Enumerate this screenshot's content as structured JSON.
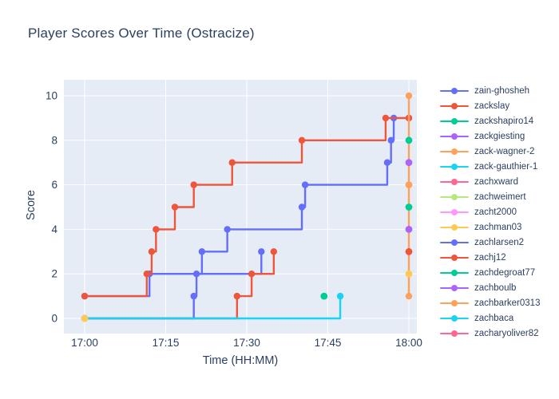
{
  "title": "Player Scores Over Time (Ostracize)",
  "chart_data": {
    "type": "line",
    "step_shape": "hv",
    "title": "Player Scores Over Time (Ostracize)",
    "xlabel": "Time (HH:MM)",
    "ylabel": "Score",
    "x_axis": {
      "tick_labels": [
        "17:00",
        "17:15",
        "17:30",
        "17:45",
        "18:00"
      ],
      "tick_minutes": [
        0,
        15,
        30,
        45,
        60
      ],
      "range_minutes": [
        0,
        60
      ]
    },
    "y_axis": {
      "tick_labels": [
        "0",
        "2",
        "4",
        "6",
        "8",
        "10"
      ],
      "ticks": [
        0,
        2,
        4,
        6,
        8,
        10
      ],
      "range": [
        0,
        10
      ]
    },
    "grid": "on",
    "plot_bg": "#e5ecf6",
    "grid_color": "#ffffff",
    "legend_position": "right",
    "series": [
      {
        "name": "zain-ghosheh",
        "color": "#636efa",
        "minutes": [
          0,
          12,
          21.7,
          26.4,
          40.2,
          40.8,
          56,
          56.7,
          57.2,
          60
        ],
        "scores": [
          1,
          2,
          3,
          4,
          5,
          6,
          7,
          8,
          9,
          9
        ]
      },
      {
        "name": "zackslay",
        "color": "#ef553b",
        "minutes": [
          0,
          11.5,
          12.4,
          13.2,
          16.7,
          20.2,
          27.3,
          40.2,
          55.7,
          60
        ],
        "scores": [
          1,
          2,
          3,
          4,
          5,
          6,
          7,
          8,
          9,
          9
        ]
      },
      {
        "name": "zachlarsen2",
        "color": "#636efa",
        "minutes": [
          0,
          20.2,
          20.7,
          32.7
        ],
        "scores": [
          0,
          1,
          2,
          3
        ]
      },
      {
        "name": "zachj12",
        "color": "#ef553b",
        "minutes": [
          0,
          28.2,
          30.9,
          35
        ],
        "scores": [
          0,
          1,
          2,
          3
        ]
      },
      {
        "name": "zack-gauthier-1",
        "color": "#19d3f3",
        "minutes": [
          0,
          47.3
        ],
        "scores": [
          0,
          1
        ]
      },
      {
        "name": "zachbarker0313",
        "color": "#ffa15a",
        "minutes": [
          60,
          60
        ],
        "scores": [
          1,
          10
        ]
      }
    ],
    "point_markers": [
      {
        "player": "zachman03",
        "color": "#fecb52",
        "minute": 0,
        "score": 0
      },
      {
        "player": "zachdegroat77",
        "color": "#00cc96",
        "minute": 44.3,
        "score": 1
      },
      {
        "player": "zackshapiro14",
        "color": "#00cc96",
        "minute": 60,
        "score": 8
      },
      {
        "player": "zackgiesting",
        "color": "#ab63fa",
        "minute": 60,
        "score": 7
      },
      {
        "player": "zack-wagner-2",
        "color": "#ffa15a",
        "minute": 60,
        "score": 6
      },
      {
        "player": "zachdegroat77",
        "color": "#00cc96",
        "minute": 60,
        "score": 5
      },
      {
        "player": "zachboulb",
        "color": "#ab63fa",
        "minute": 60,
        "score": 4
      },
      {
        "player": "zachj12",
        "color": "#ef553b",
        "minute": 60,
        "score": 3
      },
      {
        "player": "zachman03",
        "color": "#fecb52",
        "minute": 60,
        "score": 2
      }
    ],
    "legend": [
      {
        "label": "zain-ghosheh",
        "color": "#636efa"
      },
      {
        "label": "zackslay",
        "color": "#ef553b"
      },
      {
        "label": "zackshapiro14",
        "color": "#00cc96"
      },
      {
        "label": "zackgiesting",
        "color": "#ab63fa"
      },
      {
        "label": "zack-wagner-2",
        "color": "#ffa15a"
      },
      {
        "label": "zack-gauthier-1",
        "color": "#19d3f3"
      },
      {
        "label": "zachxward",
        "color": "#ff6692"
      },
      {
        "label": "zachweimert",
        "color": "#b6e880"
      },
      {
        "label": "zacht2000",
        "color": "#ff97ff"
      },
      {
        "label": "zachman03",
        "color": "#fecb52"
      },
      {
        "label": "zachlarsen2",
        "color": "#636efa"
      },
      {
        "label": "zachj12",
        "color": "#ef553b"
      },
      {
        "label": "zachdegroat77",
        "color": "#00cc96"
      },
      {
        "label": "zachboulb",
        "color": "#ab63fa"
      },
      {
        "label": "zachbarker0313",
        "color": "#ffa15a"
      },
      {
        "label": "zachbaca",
        "color": "#19d3f3"
      },
      {
        "label": "zacharyoliver82",
        "color": "#ff6692"
      }
    ],
    "text_color": "#2a3f5f"
  }
}
